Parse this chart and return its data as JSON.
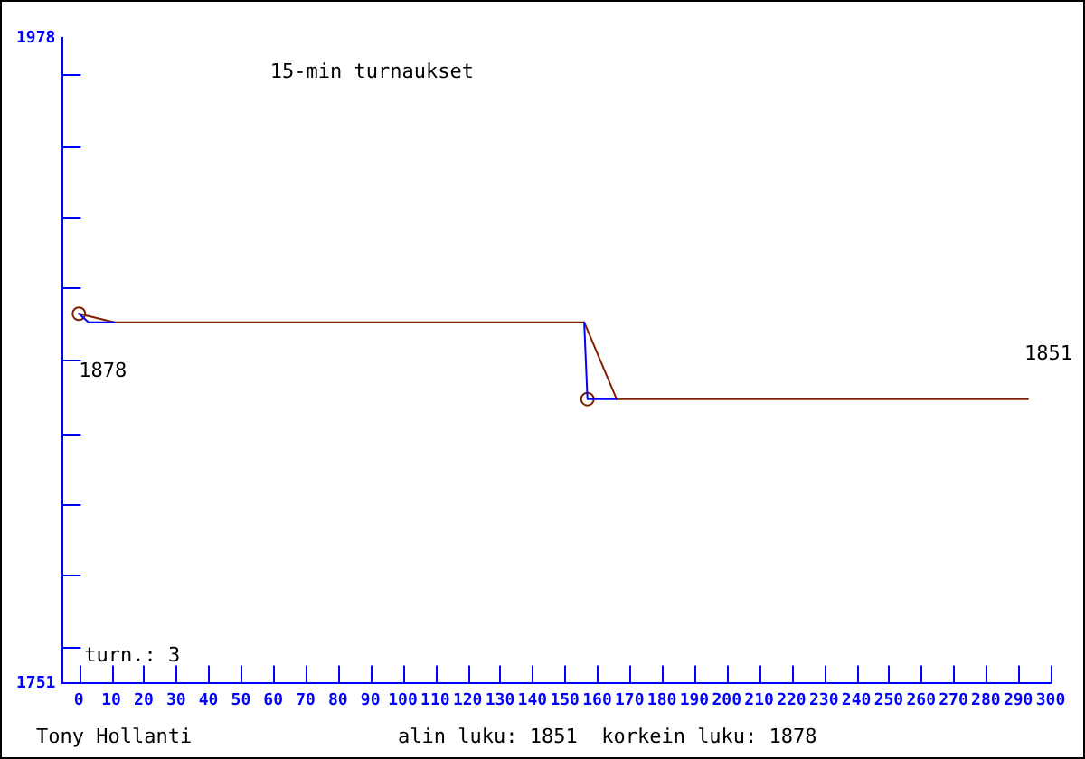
{
  "chart_data": {
    "type": "line",
    "title": "15-min turnaukset",
    "xlim": [
      -5,
      300
    ],
    "xticks": [
      0,
      10,
      20,
      30,
      40,
      50,
      60,
      70,
      80,
      90,
      100,
      110,
      120,
      130,
      140,
      150,
      160,
      170,
      180,
      190,
      200,
      210,
      220,
      230,
      240,
      250,
      260,
      270,
      280,
      290,
      300
    ],
    "ylim": [
      1751,
      1978
    ],
    "yticks": [
      1751,
      {
        "value": 1764,
        "label": null
      },
      {
        "value": 1789,
        "label": null
      },
      {
        "value": 1814,
        "label": null
      },
      {
        "value": 1839,
        "label": null
      },
      {
        "value": 1865,
        "label": null
      },
      {
        "value": 1890,
        "label": null
      },
      {
        "value": 1915,
        "label": null
      },
      {
        "value": 1940,
        "label": null
      },
      {
        "value": 1965,
        "label": null
      },
      1978
    ],
    "series": [
      {
        "color": "#0000ff",
        "x": [
          0,
          3,
          11
        ],
        "values": [
          1881,
          1878,
          1878
        ],
        "marker": "none"
      },
      {
        "color": "#0000ff",
        "x": [
          156,
          157,
          166
        ],
        "values": [
          1878,
          1851,
          1851
        ],
        "marker": "none"
      },
      {
        "color": "#802000",
        "x": [
          0,
          11,
          156,
          166,
          293
        ],
        "values": [
          1881,
          1878,
          1878,
          1851,
          1851
        ],
        "marker": "none"
      },
      {
        "type": "scatter",
        "color": "#802000",
        "x": [
          0,
          157
        ],
        "values": [
          1881,
          1851
        ],
        "marker": "circle"
      }
    ],
    "annotations": [
      "Tony Hollanti",
      "alin luku: 1851  korkein luku: 1878",
      "turn.: 3",
      {
        "text": "1878",
        "x": 0,
        "y": 1878
      },
      {
        "text": "1851",
        "x": 293,
        "y": 1851
      }
    ]
  }
}
